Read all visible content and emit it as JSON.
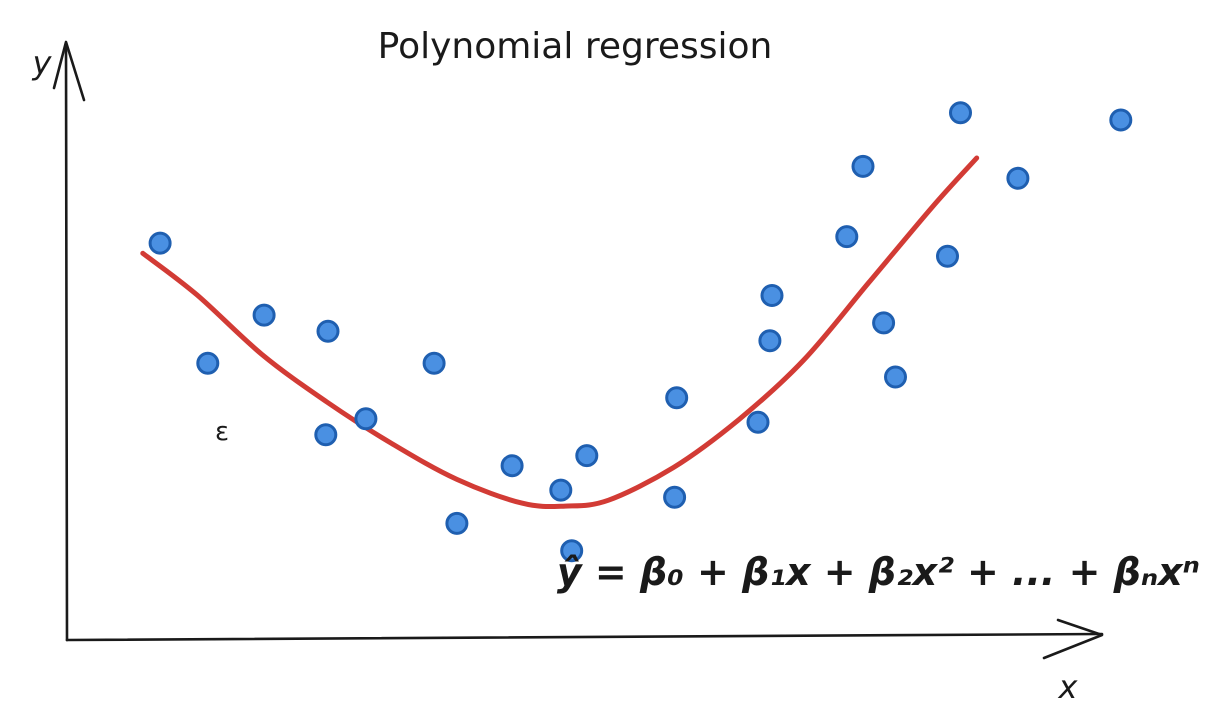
{
  "chart_data": {
    "type": "scatter",
    "title": "Polynomial regression",
    "xlabel": "x",
    "ylabel": "y",
    "annotation": "ε",
    "equation": "ŷ = β₀ + β₁x + β₂x² + ... + βₙxⁿ",
    "xlim": [
      0,
      100
    ],
    "ylim": [
      0,
      100
    ],
    "grid": false,
    "points": [
      {
        "x": 8.6,
        "y": 66.7
      },
      {
        "x": 13.0,
        "y": 46.5
      },
      {
        "x": 18.2,
        "y": 54.6
      },
      {
        "x": 24.1,
        "y": 51.9
      },
      {
        "x": 23.9,
        "y": 34.5
      },
      {
        "x": 27.6,
        "y": 37.2
      },
      {
        "x": 33.9,
        "y": 46.5
      },
      {
        "x": 36.0,
        "y": 19.6
      },
      {
        "x": 41.1,
        "y": 29.3
      },
      {
        "x": 45.6,
        "y": 25.2
      },
      {
        "x": 46.6,
        "y": 15.0
      },
      {
        "x": 48.0,
        "y": 31.0
      },
      {
        "x": 56.1,
        "y": 24.0
      },
      {
        "x": 56.3,
        "y": 40.7
      },
      {
        "x": 63.8,
        "y": 36.6
      },
      {
        "x": 65.1,
        "y": 57.9
      },
      {
        "x": 64.9,
        "y": 50.3
      },
      {
        "x": 72.0,
        "y": 67.8
      },
      {
        "x": 73.5,
        "y": 79.6
      },
      {
        "x": 75.4,
        "y": 53.3
      },
      {
        "x": 76.5,
        "y": 44.2
      },
      {
        "x": 81.3,
        "y": 64.5
      },
      {
        "x": 82.5,
        "y": 88.6
      },
      {
        "x": 87.8,
        "y": 77.6
      },
      {
        "x": 97.3,
        "y": 87.4
      }
    ],
    "fit_curve": {
      "x": [
        7.0,
        12.0,
        18.0,
        24.0,
        30.0,
        36.0,
        42.0,
        46.0,
        50.0,
        56.0,
        62.0,
        68.0,
        74.0,
        80.0,
        84.0
      ],
      "y": [
        65.0,
        58.0,
        48.0,
        40.0,
        33.0,
        27.0,
        23.0,
        22.5,
        23.5,
        29.0,
        37.0,
        47.0,
        60.0,
        73.0,
        81.0
      ]
    },
    "colors": {
      "point_fill": "#4a90e2",
      "point_stroke": "#1f5fb0",
      "curve": "#d23b35",
      "axis": "#1a1a1a"
    }
  }
}
